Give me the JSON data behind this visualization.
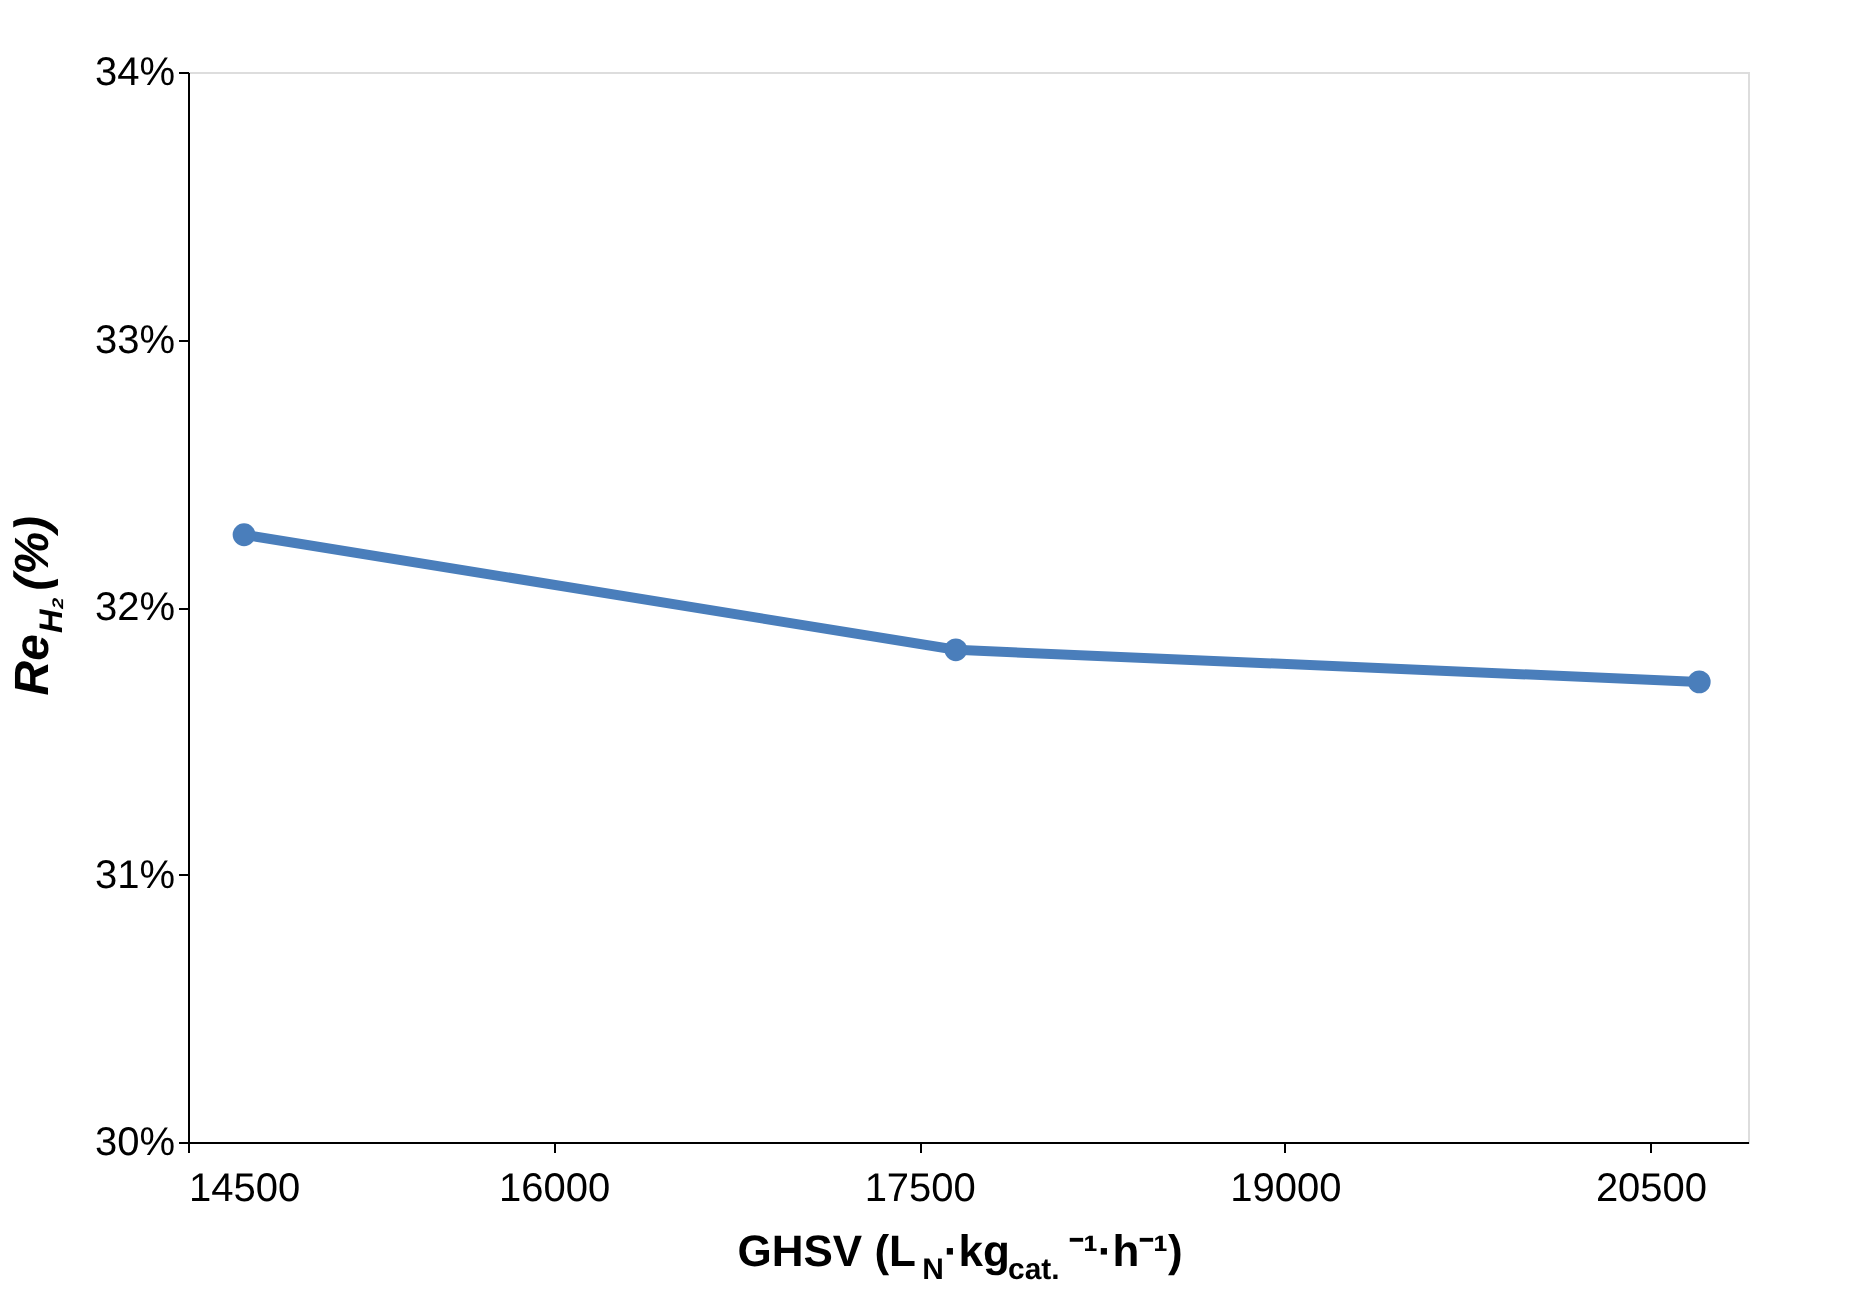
{
  "chart_data": {
    "type": "line",
    "xlabel": "GHSV (L$_{N}$·kg$_{cat.}$⁻¹·h⁻¹)",
    "ylabel": "Re$_{H₂}$(%)",
    "x": [
      14730,
      17650,
      20700
    ],
    "series": [
      {
        "color": "#4a7ebb",
        "values": [
          32.27,
          31.84,
          31.72
        ]
      }
    ],
    "xlim": [
      14500,
      20900
    ],
    "xticks": [
      14500,
      16000,
      17500,
      19000,
      20500
    ],
    "ylim": [
      30,
      34
    ],
    "yticks": [
      {
        "value": 30,
        "label": "30%"
      },
      {
        "value": 31,
        "label": "31%"
      },
      {
        "value": 32,
        "label": "32%"
      },
      {
        "value": 33,
        "label": "33%"
      },
      {
        "value": 34,
        "label": "34%"
      }
    ],
    "grid": false,
    "marker": "circle",
    "line_style": "solid",
    "legend": false
  }
}
